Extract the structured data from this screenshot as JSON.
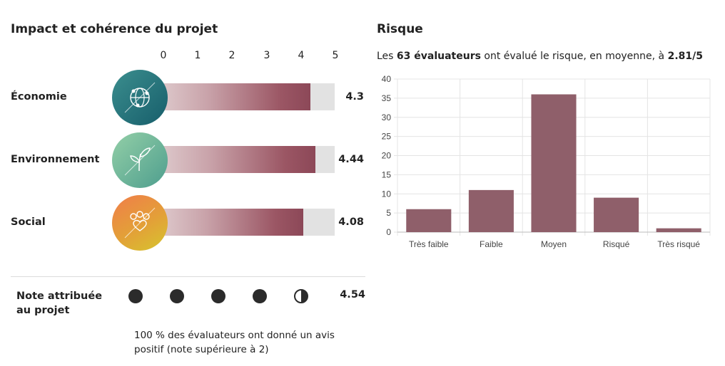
{
  "impact": {
    "title": "Impact et cohérence du projet",
    "scale_ticks": [
      "0",
      "1",
      "2",
      "3",
      "4",
      "5"
    ],
    "scale_max": 5,
    "rows": [
      {
        "label": "Économie",
        "score_text": "4.3",
        "value": 4.3,
        "icon": "globe-network-icon",
        "colors": [
          "#3b8e8e",
          "#175e6b"
        ]
      },
      {
        "label": "Environnement",
        "score_text": "4.44",
        "value": 4.44,
        "icon": "leaf-sprout-icon",
        "colors": [
          "#93cfa7",
          "#4e9e8e"
        ]
      },
      {
        "label": "Social",
        "score_text": "4.08",
        "value": 4.08,
        "icon": "people-heart-icon",
        "colors": [
          "#f07d4a",
          "#d6c52e"
        ]
      }
    ],
    "note": {
      "label_line1": "Note attribuée",
      "label_line2": "au projet",
      "value": 4.54,
      "score_text": "4.54",
      "dots": [
        "full",
        "full",
        "full",
        "full",
        "half"
      ]
    },
    "summary_line1": "100 % des évaluateurs ont donné un avis",
    "summary_line2": "positif (note supérieure à 2)"
  },
  "risk": {
    "title": "Risque",
    "subtitle_pre": "Les ",
    "subtitle_count": "63 évaluateurs",
    "subtitle_mid": " ont évalué le risque, en moyenne, à ",
    "subtitle_avg": "2.81/5"
  },
  "chart_data": {
    "type": "bar",
    "categories": [
      "Très faible",
      "Faible",
      "Moyen",
      "Risqué",
      "Très risqué"
    ],
    "values": [
      6,
      11,
      36,
      9,
      1
    ],
    "ylim": [
      0,
      40
    ],
    "yticks": [
      0,
      5,
      10,
      15,
      20,
      25,
      30,
      35,
      40
    ],
    "grid": true,
    "bar_color": "#8f5f6a"
  }
}
